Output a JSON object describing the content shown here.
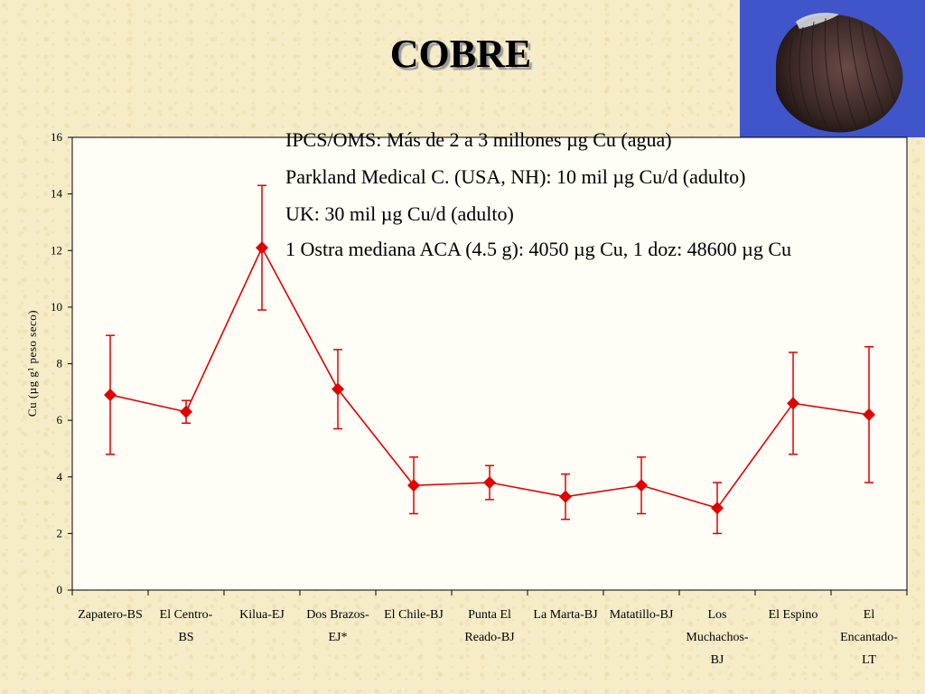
{
  "slide": {
    "title": "COBRE"
  },
  "notes": [
    "IPCS/OMS: Más de 2 a 3 millones µg Cu (agua)",
    "Parkland Medical C. (USA, NH): 10 mil µg Cu/d (adulto)",
    "UK: 30 mil µg Cu/d (adulto)",
    "1 Ostra mediana ACA (4.5 g): 4050 µg Cu, 1 doz: 48600 µg Cu"
  ],
  "photo": {
    "subject": "bivalve-shell"
  },
  "chart_data": {
    "type": "line",
    "title": "",
    "xlabel": "",
    "ylabel": "Cu (µg g¹ peso seco)",
    "ylim": [
      0,
      16
    ],
    "yticks": [
      0,
      2,
      4,
      6,
      8,
      10,
      12,
      14,
      16
    ],
    "grid": false,
    "legend": "none",
    "color": "#e00000",
    "marker": "diamond",
    "categories": [
      [
        "Zapatero-BS"
      ],
      [
        "El Centro-",
        "BS"
      ],
      [
        "Kilua-EJ"
      ],
      [
        "Dos Brazos-",
        "EJ*"
      ],
      [
        "El Chile-BJ"
      ],
      [
        "Punta El",
        "Reado-BJ"
      ],
      [
        "La Marta-BJ"
      ],
      [
        "Matatillo-BJ"
      ],
      [
        "Los",
        "Muchachos-",
        "BJ"
      ],
      [
        "El Espino"
      ],
      [
        "El",
        "Encantado-",
        "LT"
      ]
    ],
    "series": [
      {
        "values": [
          6.9,
          6.3,
          12.1,
          7.1,
          3.7,
          3.8,
          3.3,
          3.7,
          2.9,
          6.6,
          6.2
        ],
        "err_high": [
          9.0,
          6.7,
          14.3,
          8.5,
          4.7,
          4.4,
          4.1,
          4.7,
          3.8,
          8.4,
          8.6
        ],
        "err_low": [
          4.8,
          5.9,
          9.9,
          5.7,
          2.7,
          3.2,
          2.5,
          2.7,
          2.0,
          4.8,
          3.8
        ]
      }
    ]
  }
}
